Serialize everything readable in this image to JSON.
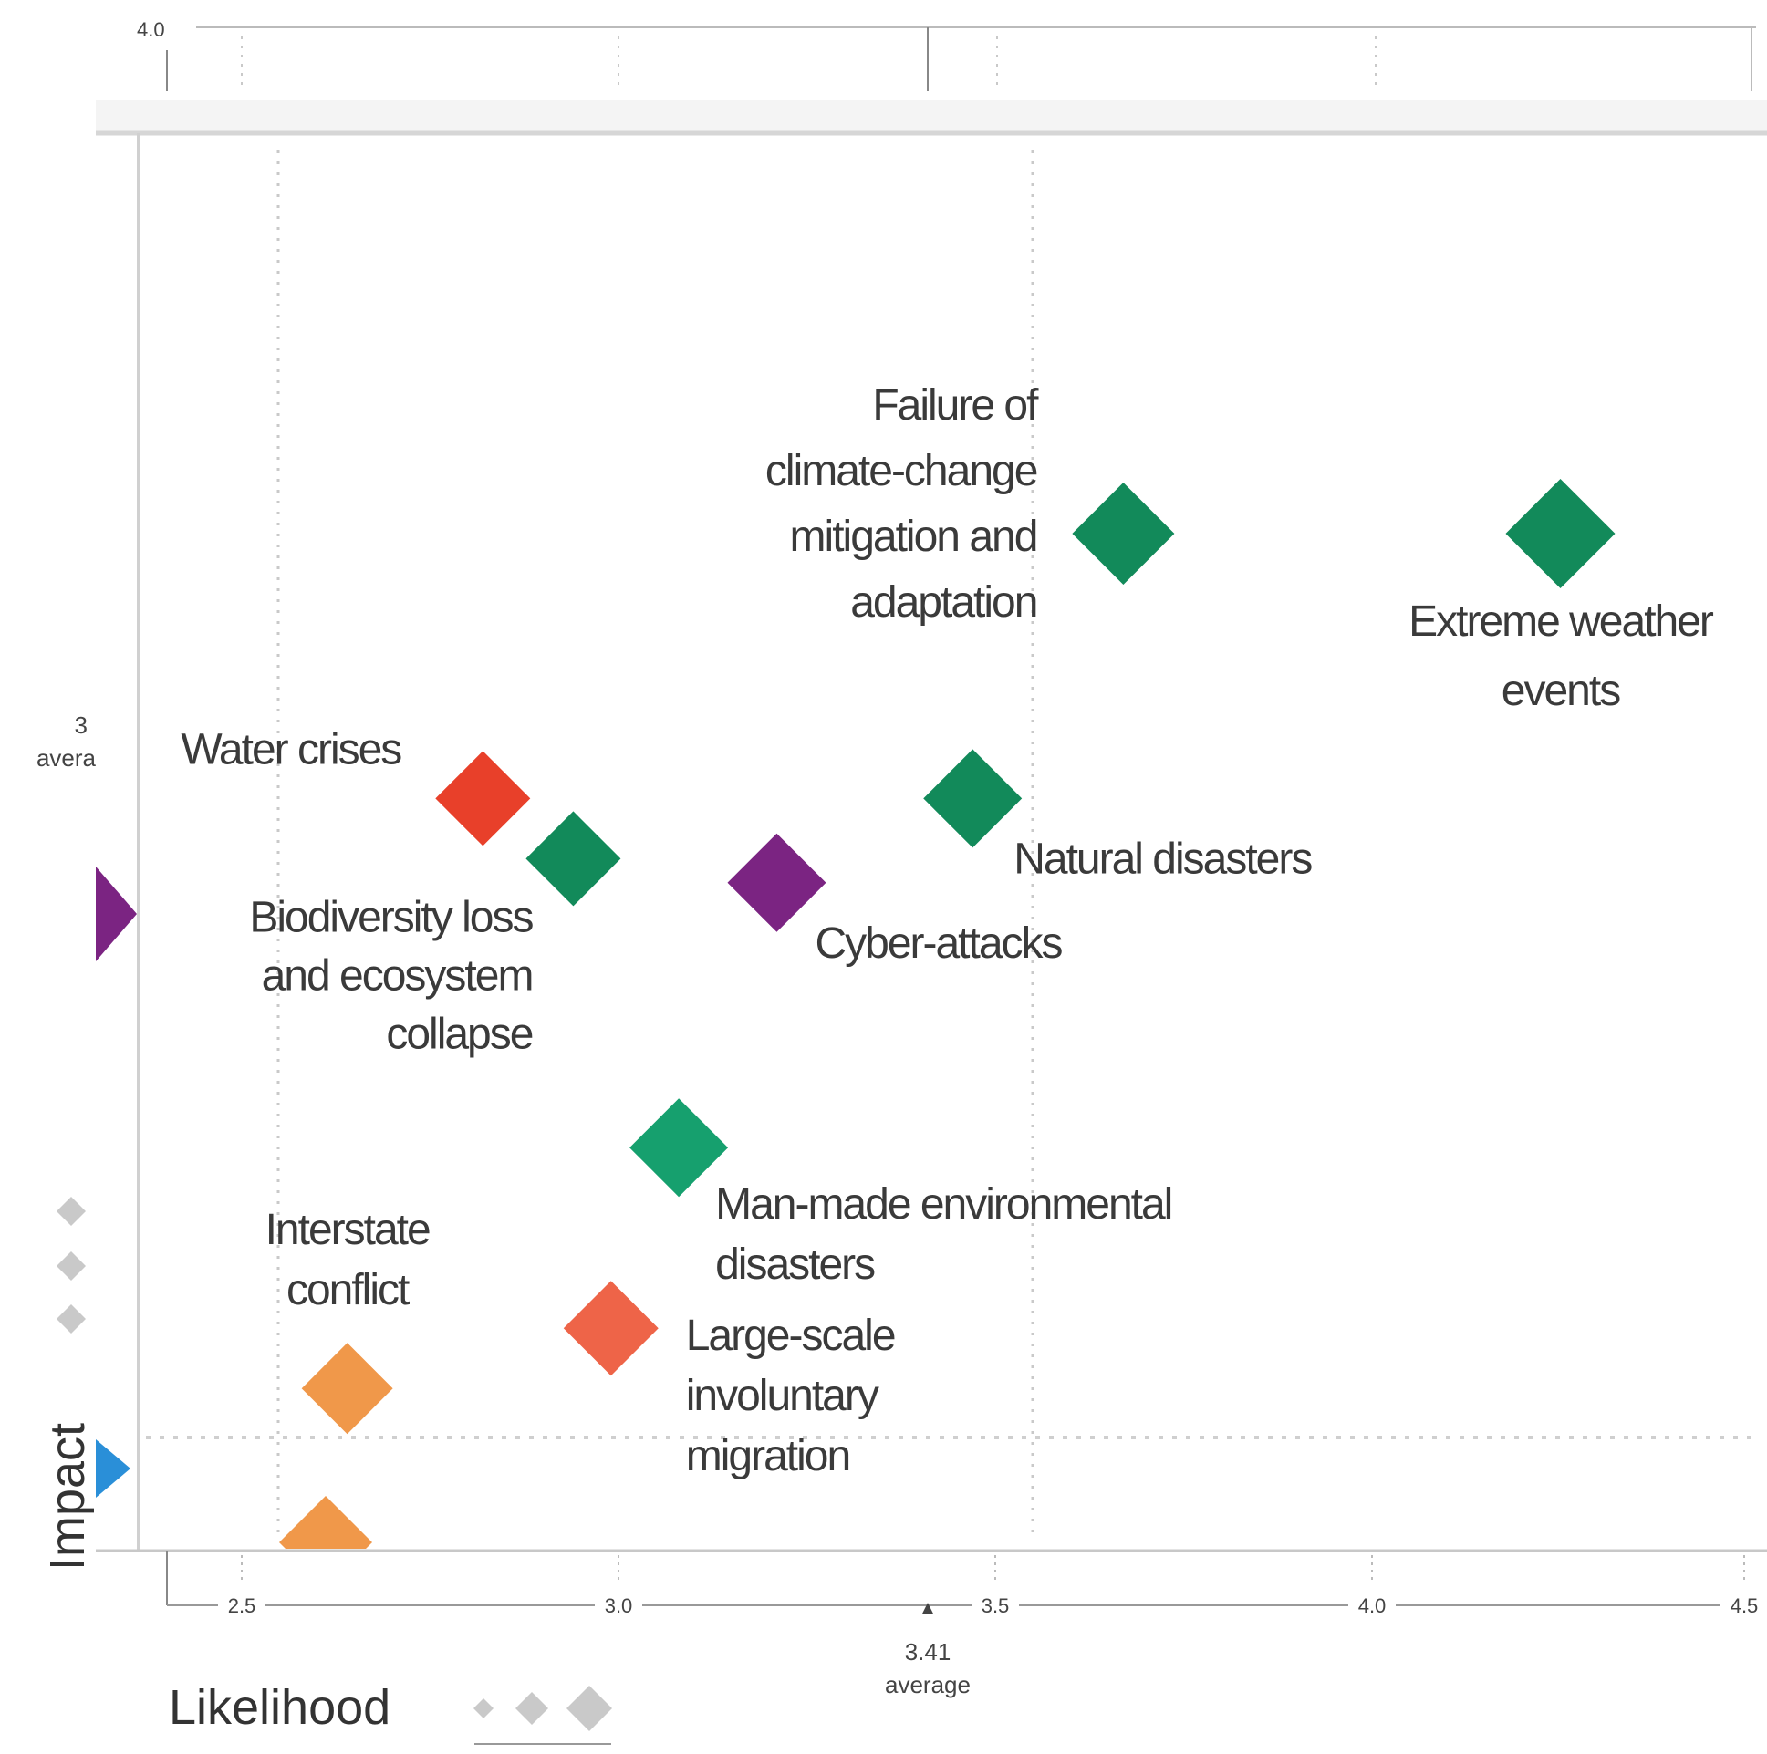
{
  "chart_data": {
    "type": "scatter",
    "title": "",
    "xlabel": "Likelihood",
    "ylabel": "Impact",
    "x_ticks": [
      "2.5",
      "3.0",
      "3.5",
      "4.0",
      "4.5"
    ],
    "x_tick_values": [
      2.5,
      3.0,
      3.5,
      4.0,
      4.5
    ],
    "top_tick_label": "4.0",
    "x_average": {
      "value": "3.41",
      "label": "average"
    },
    "y_average": {
      "value": "3",
      "label": "avera"
    },
    "xlim": [
      2.4,
      4.5
    ],
    "ylim": [
      2.95,
      3.95
    ],
    "grid": "dotted",
    "points": [
      {
        "label": "Failure of climate-change mitigation and adaptation",
        "lines": [
          "Failure of",
          "climate-change",
          "mitigation and",
          "adaptation"
        ],
        "x": 3.67,
        "y": 3.75,
        "color": "#128a5a"
      },
      {
        "label": "Extreme weather events",
        "lines": [
          "Extreme weather",
          "events"
        ],
        "x": 4.25,
        "y": 3.75,
        "color": "#128a5a"
      },
      {
        "label": "Water crises",
        "lines": [
          "Water crises"
        ],
        "x": 2.82,
        "y": 3.53,
        "color": "#e8402a"
      },
      {
        "label": "Natural disasters",
        "lines": [
          "Natural disasters"
        ],
        "x": 3.47,
        "y": 3.53,
        "color": "#128a5a"
      },
      {
        "label": "Biodiversity loss and ecosystem collapse",
        "lines": [
          "Biodiversity loss",
          "and ecosystem",
          "collapse"
        ],
        "x": 2.94,
        "y": 3.48,
        "color": "#128a5a"
      },
      {
        "label": "Cyber-attacks",
        "lines": [
          "Cyber-attacks"
        ],
        "x": 3.21,
        "y": 3.46,
        "color": "#7b2482"
      },
      {
        "label": "Man-made environmental disasters",
        "lines": [
          "Man-made environmental",
          "disasters"
        ],
        "x": 3.08,
        "y": 3.24,
        "color": "#16a06e"
      },
      {
        "label": "Interstate conflict",
        "lines": [
          "Interstate",
          "conflict"
        ],
        "x": 2.64,
        "y": 3.04,
        "color": "#f0984a"
      },
      {
        "label": "Large-scale involuntary migration",
        "lines": [
          "Large-scale",
          "involuntary",
          "migration"
        ],
        "x": 2.99,
        "y": 3.09,
        "color": "#ee6448"
      }
    ],
    "legend": {
      "size_label": "Likelihood",
      "sizes": "small-to-large diamonds"
    }
  },
  "colors": {
    "gray_marker": "#c9c9c9",
    "purple_edge_marker": "#7b2482",
    "blue_edge_marker": "#2a8fd8",
    "partial_orange_marker": "#f0984a"
  }
}
